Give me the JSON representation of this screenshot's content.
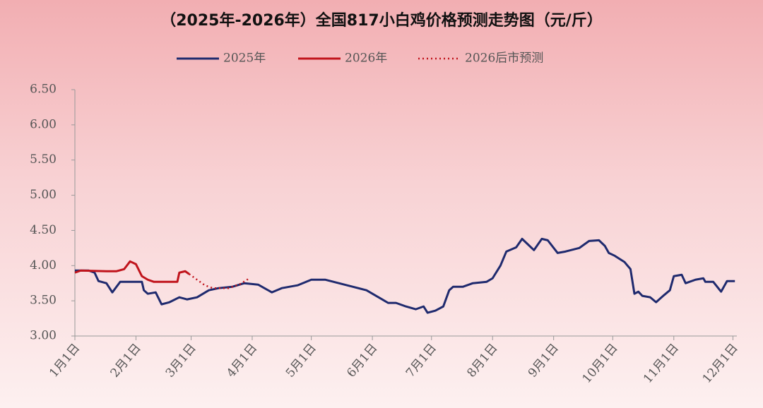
{
  "chart_data": {
    "type": "line",
    "title": "（2025年-2026年）全国817小白鸡价格预测走势图（元/斤）",
    "xlim": [
      0,
      336
    ],
    "xticks": [
      {
        "value": 0,
        "label": "1月1日"
      },
      {
        "value": 31,
        "label": "2月1日"
      },
      {
        "value": 59,
        "label": "3月1日"
      },
      {
        "value": 90,
        "label": "4月1日"
      },
      {
        "value": 120,
        "label": "5月1日"
      },
      {
        "value": 151,
        "label": "6月1日"
      },
      {
        "value": 181,
        "label": "7月1日"
      },
      {
        "value": 212,
        "label": "8月1日"
      },
      {
        "value": 243,
        "label": "9月1日"
      },
      {
        "value": 273,
        "label": "10月1日"
      },
      {
        "value": 304,
        "label": "11月1日"
      },
      {
        "value": 334,
        "label": "12月1日"
      }
    ],
    "ylim": [
      3,
      6.5
    ],
    "yticks": [
      {
        "value": 3,
        "label": "3.00"
      },
      {
        "value": 3.5,
        "label": "3.50"
      },
      {
        "value": 4,
        "label": "4.00"
      },
      {
        "value": 4.5,
        "label": "4.50"
      },
      {
        "value": 5,
        "label": "5.00"
      },
      {
        "value": 5.5,
        "label": "5.50"
      },
      {
        "value": 6,
        "label": "6.00"
      },
      {
        "value": 6.5,
        "label": "6.50"
      }
    ],
    "series": [
      {
        "name": "2025年",
        "color": "#1f2a6e",
        "dashed": false,
        "x": [
          0,
          7,
          10,
          12,
          16,
          19,
          23,
          34,
          35,
          37,
          41,
          44,
          48,
          53,
          57,
          62,
          68,
          73,
          80,
          86,
          93,
          100,
          105,
          113,
          120,
          127,
          134,
          141,
          148,
          156,
          159,
          163,
          168,
          173,
          177,
          179,
          183,
          187,
          190,
          192,
          197,
          202,
          209,
          212,
          216,
          219,
          224,
          227,
          230,
          233,
          237,
          240,
          245,
          249,
          256,
          261,
          266,
          269,
          271,
          274,
          279,
          282,
          284,
          286,
          288,
          292,
          295,
          299,
          302,
          304,
          308,
          310,
          315,
          319,
          320,
          324,
          328,
          331,
          335
        ],
        "values": [
          3.93,
          3.93,
          3.9,
          3.78,
          3.75,
          3.62,
          3.77,
          3.77,
          3.65,
          3.6,
          3.62,
          3.45,
          3.48,
          3.55,
          3.52,
          3.55,
          3.65,
          3.68,
          3.7,
          3.75,
          3.73,
          3.62,
          3.68,
          3.72,
          3.8,
          3.8,
          3.75,
          3.7,
          3.65,
          3.52,
          3.47,
          3.47,
          3.42,
          3.38,
          3.42,
          3.33,
          3.36,
          3.42,
          3.65,
          3.7,
          3.7,
          3.75,
          3.77,
          3.82,
          4.0,
          4.2,
          4.26,
          4.38,
          4.3,
          4.22,
          4.38,
          4.36,
          4.18,
          4.2,
          4.25,
          4.35,
          4.36,
          4.28,
          4.18,
          4.14,
          4.05,
          3.95,
          3.6,
          3.63,
          3.57,
          3.55,
          3.48,
          3.58,
          3.65,
          3.85,
          3.87,
          3.75,
          3.8,
          3.82,
          3.77,
          3.77,
          3.63,
          3.78,
          3.78
        ]
      },
      {
        "name": "2026年",
        "color": "#c0141c",
        "dashed": false,
        "x": [
          0,
          3,
          16,
          21,
          25,
          28,
          31,
          34,
          37,
          40,
          52,
          53,
          56,
          58
        ],
        "values": [
          3.9,
          3.93,
          3.92,
          3.92,
          3.95,
          4.06,
          4.02,
          3.85,
          3.8,
          3.77,
          3.77,
          3.9,
          3.92,
          3.88
        ]
      },
      {
        "name": "2026后市预测",
        "color": "#c0141c",
        "dashed": true,
        "x": [
          58,
          62,
          66,
          70,
          78,
          84,
          88
        ],
        "values": [
          3.88,
          3.8,
          3.72,
          3.68,
          3.68,
          3.74,
          3.81
        ]
      }
    ]
  }
}
